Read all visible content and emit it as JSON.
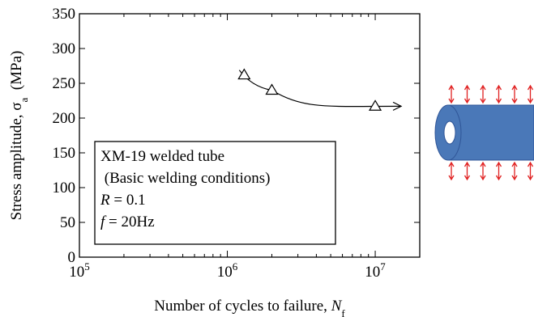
{
  "chart_data": {
    "type": "scatter",
    "xscale": "log",
    "x": [
      1300000,
      2000000,
      10000000
    ],
    "values": [
      262,
      240,
      217
    ],
    "color": "#000000",
    "marker": "triangle",
    "xlim": [
      100000,
      20000000
    ],
    "ylim": [
      0,
      350
    ],
    "xticks": [
      {
        "value": 100000,
        "label": "10",
        "sup": "5"
      },
      {
        "value": 1000000,
        "label": "10",
        "sup": "6"
      },
      {
        "value": 10000000,
        "label": "10",
        "sup": "7"
      }
    ],
    "yticks": [
      0,
      50,
      100,
      150,
      200,
      250,
      300,
      350
    ],
    "x_label": [
      {
        "text": "Number of cycles to failure, "
      },
      {
        "text": "N",
        "italic": true
      },
      {
        "text": "f",
        "sub": true
      }
    ],
    "y_label": [
      {
        "text": "Stress amplitude, σ"
      },
      {
        "text": "a",
        "sub": true
      },
      {
        "text": "  (MPa)"
      }
    ],
    "annotation": [
      [
        {
          "text": "XM-19 welded tube"
        }
      ],
      [
        {
          "text": " (Basic welding conditions)"
        }
      ],
      [
        {
          "text": "R",
          "italic": true
        },
        {
          "text": " = 0.1"
        }
      ],
      [
        {
          "text": "f",
          "italic": true
        },
        {
          "text": " = 20Hz"
        }
      ]
    ]
  }
}
